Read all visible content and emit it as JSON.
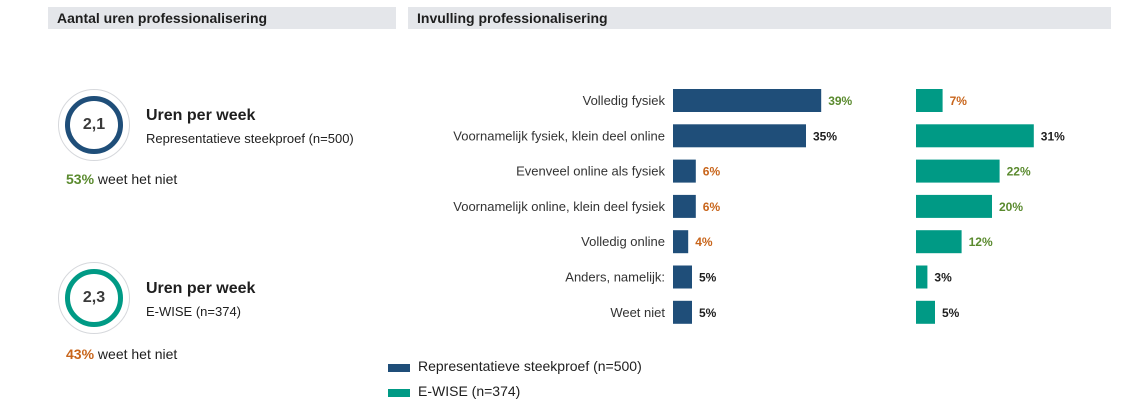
{
  "headers": {
    "left": "Aantal uren professionalisering",
    "right": "Invulling professionalisering"
  },
  "kpis": [
    {
      "value": "2,1",
      "title": "Uren per week",
      "subtitle": "Representatieve steekproef (n=500)",
      "note_pct": "53%",
      "note_text": "weet het niet",
      "ring_color": "#1f4e79",
      "note_color": "#5a8a2e"
    },
    {
      "value": "2,3",
      "title": "Uren per week",
      "subtitle": "E-WISE (n=374)",
      "note_pct": "43%",
      "note_text": "weet het niet",
      "ring_color": "#009a85",
      "note_color": "#c8651b"
    }
  ],
  "colors": {
    "series1": "#1f4e79",
    "series2": "#009a85",
    "label_green": "#5a8a2e",
    "label_orange": "#c8651b",
    "label_black": "#1e1e1e"
  },
  "chart_data": {
    "type": "bar",
    "orientation": "horizontal",
    "categories": [
      "Volledig fysiek",
      "Voornamelijk fysiek, klein deel online",
      "Evenveel online als fysiek",
      "Voornamelijk online, klein deel fysiek",
      "Volledig online",
      "Anders, namelijk:",
      "Weet niet"
    ],
    "series": [
      {
        "name": "Representatieve steekproef (n=500)",
        "values": [
          39,
          35,
          6,
          6,
          4,
          5,
          5
        ],
        "labels": [
          "39%",
          "35%",
          "6%",
          "6%",
          "4%",
          "5%",
          "5%"
        ],
        "label_styles": [
          "green",
          "black",
          "orange",
          "orange",
          "orange",
          "black",
          "black"
        ]
      },
      {
        "name": "E-WISE (n=374)",
        "values": [
          7,
          31,
          22,
          20,
          12,
          3,
          5
        ],
        "labels": [
          "7%",
          "31%",
          "22%",
          "20%",
          "12%",
          "3%",
          "5%"
        ],
        "label_styles": [
          "orange",
          "black",
          "green",
          "green",
          "green",
          "black",
          "black"
        ]
      }
    ],
    "legend_position": "bottom-left",
    "grid": false
  }
}
